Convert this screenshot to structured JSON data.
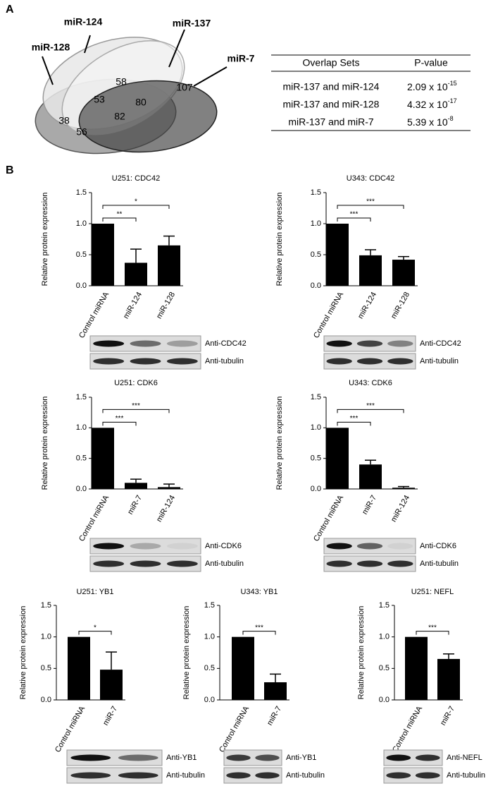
{
  "panel_a": {
    "label": "A",
    "venn": {
      "sets": [
        "miR-124",
        "miR-137",
        "miR-128",
        "miR-7"
      ],
      "regions": [
        "58",
        "107",
        "53",
        "80",
        "38",
        "82",
        "56"
      ]
    },
    "table": {
      "headers": [
        "Overlap Sets",
        "P-value"
      ],
      "rows": [
        [
          "miR-137 and miR-124",
          {
            "base": "2.09 x 10",
            "exponent": "-15"
          }
        ],
        [
          "miR-137 and miR-128",
          {
            "base": "4.32 x 10",
            "exponent": "-17"
          }
        ],
        [
          "miR-137 and miR-7",
          {
            "base": "5.39 x 10",
            "exponent": "-8"
          }
        ]
      ]
    }
  },
  "panel_b": {
    "label": "B"
  },
  "chart_data": [
    {
      "type": "bar",
      "title": "U251: CDC42",
      "y_label": "Relative protein expression",
      "categories": [
        "Control miRNA",
        "miR-124",
        "miR-128"
      ],
      "values": [
        1.0,
        0.37,
        0.65
      ],
      "errors": [
        0,
        0.22,
        0.15
      ],
      "color": "#000000",
      "ylim": [
        0,
        1.5
      ],
      "yticks": [
        {
          "value": 0,
          "label": "0.0"
        },
        {
          "value": 0.5,
          "label": "0.5"
        },
        {
          "value": 1,
          "label": "1.0"
        },
        {
          "value": 1.5,
          "label": "1.5"
        }
      ],
      "significance": [
        {
          "label": "**",
          "pair": [
            "Control miRNA",
            "miR-124"
          ]
        },
        {
          "label": "*",
          "pair": [
            "Control miRNA",
            "miR-128"
          ]
        }
      ],
      "blots": [
        "Anti-CDC42",
        "Anti-tubulin"
      ]
    },
    {
      "type": "bar",
      "title": "U343: CDC42",
      "y_label": "Relative protein expression",
      "categories": [
        "Control miRNA",
        "miR-124",
        "miR-128"
      ],
      "values": [
        1.0,
        0.49,
        0.42
      ],
      "errors": [
        0,
        0.09,
        0.05
      ],
      "color": "#000000",
      "ylim": [
        0,
        1.5
      ],
      "yticks": [
        {
          "value": 0,
          "label": "0.0"
        },
        {
          "value": 0.5,
          "label": "0.5"
        },
        {
          "value": 1,
          "label": "1.0"
        },
        {
          "value": 1.5,
          "label": "1.5"
        }
      ],
      "significance": [
        {
          "label": "***",
          "pair": [
            "Control miRNA",
            "miR-124"
          ]
        },
        {
          "label": "***",
          "pair": [
            "Control miRNA",
            "miR-128"
          ]
        }
      ],
      "blots": [
        "Anti-CDC42",
        "Anti-tubulin"
      ]
    },
    {
      "type": "bar",
      "title": "U251: CDK6",
      "y_label": "Relative protein expression",
      "categories": [
        "Control miRNA",
        "miR-7",
        "miR-124"
      ],
      "values": [
        1.0,
        0.1,
        0.03
      ],
      "errors": [
        0,
        0.06,
        0.05
      ],
      "color": "#000000",
      "ylim": [
        0,
        1.5
      ],
      "yticks": [
        {
          "value": 0,
          "label": "0.0"
        },
        {
          "value": 0.5,
          "label": "0.5"
        },
        {
          "value": 1,
          "label": "1.0"
        },
        {
          "value": 1.5,
          "label": "1.5"
        }
      ],
      "significance": [
        {
          "label": "***",
          "pair": [
            "Control miRNA",
            "miR-7"
          ]
        },
        {
          "label": "***",
          "pair": [
            "Control miRNA",
            "miR-124"
          ]
        }
      ],
      "blots": [
        "Anti-CDK6",
        "Anti-tubulin"
      ]
    },
    {
      "type": "bar",
      "title": "U343: CDK6",
      "y_label": "Relative protein expression",
      "categories": [
        "Control miRNA",
        "miR-7",
        "miR-124"
      ],
      "values": [
        1.0,
        0.4,
        0.02
      ],
      "errors": [
        0,
        0.07,
        0.02
      ],
      "color": "#000000",
      "ylim": [
        0,
        1.5
      ],
      "yticks": [
        {
          "value": 0,
          "label": "0.0"
        },
        {
          "value": 0.5,
          "label": "0.5"
        },
        {
          "value": 1,
          "label": "1.0"
        },
        {
          "value": 1.5,
          "label": "1.5"
        }
      ],
      "significance": [
        {
          "label": "***",
          "pair": [
            "Control miRNA",
            "miR-7"
          ]
        },
        {
          "label": "***",
          "pair": [
            "Control miRNA",
            "miR-124"
          ]
        }
      ],
      "blots": [
        "Anti-CDK6",
        "Anti-tubulin"
      ]
    },
    {
      "type": "bar",
      "title": "U251: YB1",
      "y_label": "Relative protein expression",
      "categories": [
        "Control miRNA",
        "miR-7"
      ],
      "values": [
        1.0,
        0.48
      ],
      "errors": [
        0,
        0.28
      ],
      "color": "#000000",
      "ylim": [
        0,
        1.5
      ],
      "yticks": [
        {
          "value": 0,
          "label": "0.0"
        },
        {
          "value": 0.5,
          "label": "0.5"
        },
        {
          "value": 1,
          "label": "1.0"
        },
        {
          "value": 1.5,
          "label": "1.5"
        }
      ],
      "significance": [
        {
          "label": "*",
          "pair": [
            "Control miRNA",
            "miR-7"
          ]
        }
      ],
      "blots": [
        "Anti-YB1",
        "Anti-tubulin"
      ]
    },
    {
      "type": "bar",
      "title": "U343: YB1",
      "y_label": "Relative protein expression",
      "categories": [
        "Control miRNA",
        "miR-7"
      ],
      "values": [
        1.0,
        0.28
      ],
      "errors": [
        0,
        0.13
      ],
      "color": "#000000",
      "ylim": [
        0,
        1.5
      ],
      "yticks": [
        {
          "value": 0,
          "label": "0.0"
        },
        {
          "value": 0.5,
          "label": "0.5"
        },
        {
          "value": 1,
          "label": "1.0"
        },
        {
          "value": 1.5,
          "label": "1.5"
        }
      ],
      "significance": [
        {
          "label": "***",
          "pair": [
            "Control miRNA",
            "miR-7"
          ]
        }
      ],
      "blots": [
        "Anti-YB1",
        "Anti-tubulin"
      ]
    },
    {
      "type": "bar",
      "title": "U251: NEFL",
      "y_label": "Relative protein expression",
      "categories": [
        "Control miRNA",
        "miR-7"
      ],
      "values": [
        1.0,
        0.65
      ],
      "errors": [
        0,
        0.08
      ],
      "color": "#000000",
      "ylim": [
        0,
        1.5
      ],
      "yticks": [
        {
          "value": 0,
          "label": "0.0"
        },
        {
          "value": 0.5,
          "label": "0.5"
        },
        {
          "value": 1,
          "label": "1.0"
        },
        {
          "value": 1.5,
          "label": "1.5"
        }
      ],
      "significance": [
        {
          "label": "***",
          "pair": [
            "Control miRNA",
            "miR-7"
          ]
        }
      ],
      "blots": [
        "Anti-NEFL",
        "Anti-tubulin"
      ]
    }
  ]
}
